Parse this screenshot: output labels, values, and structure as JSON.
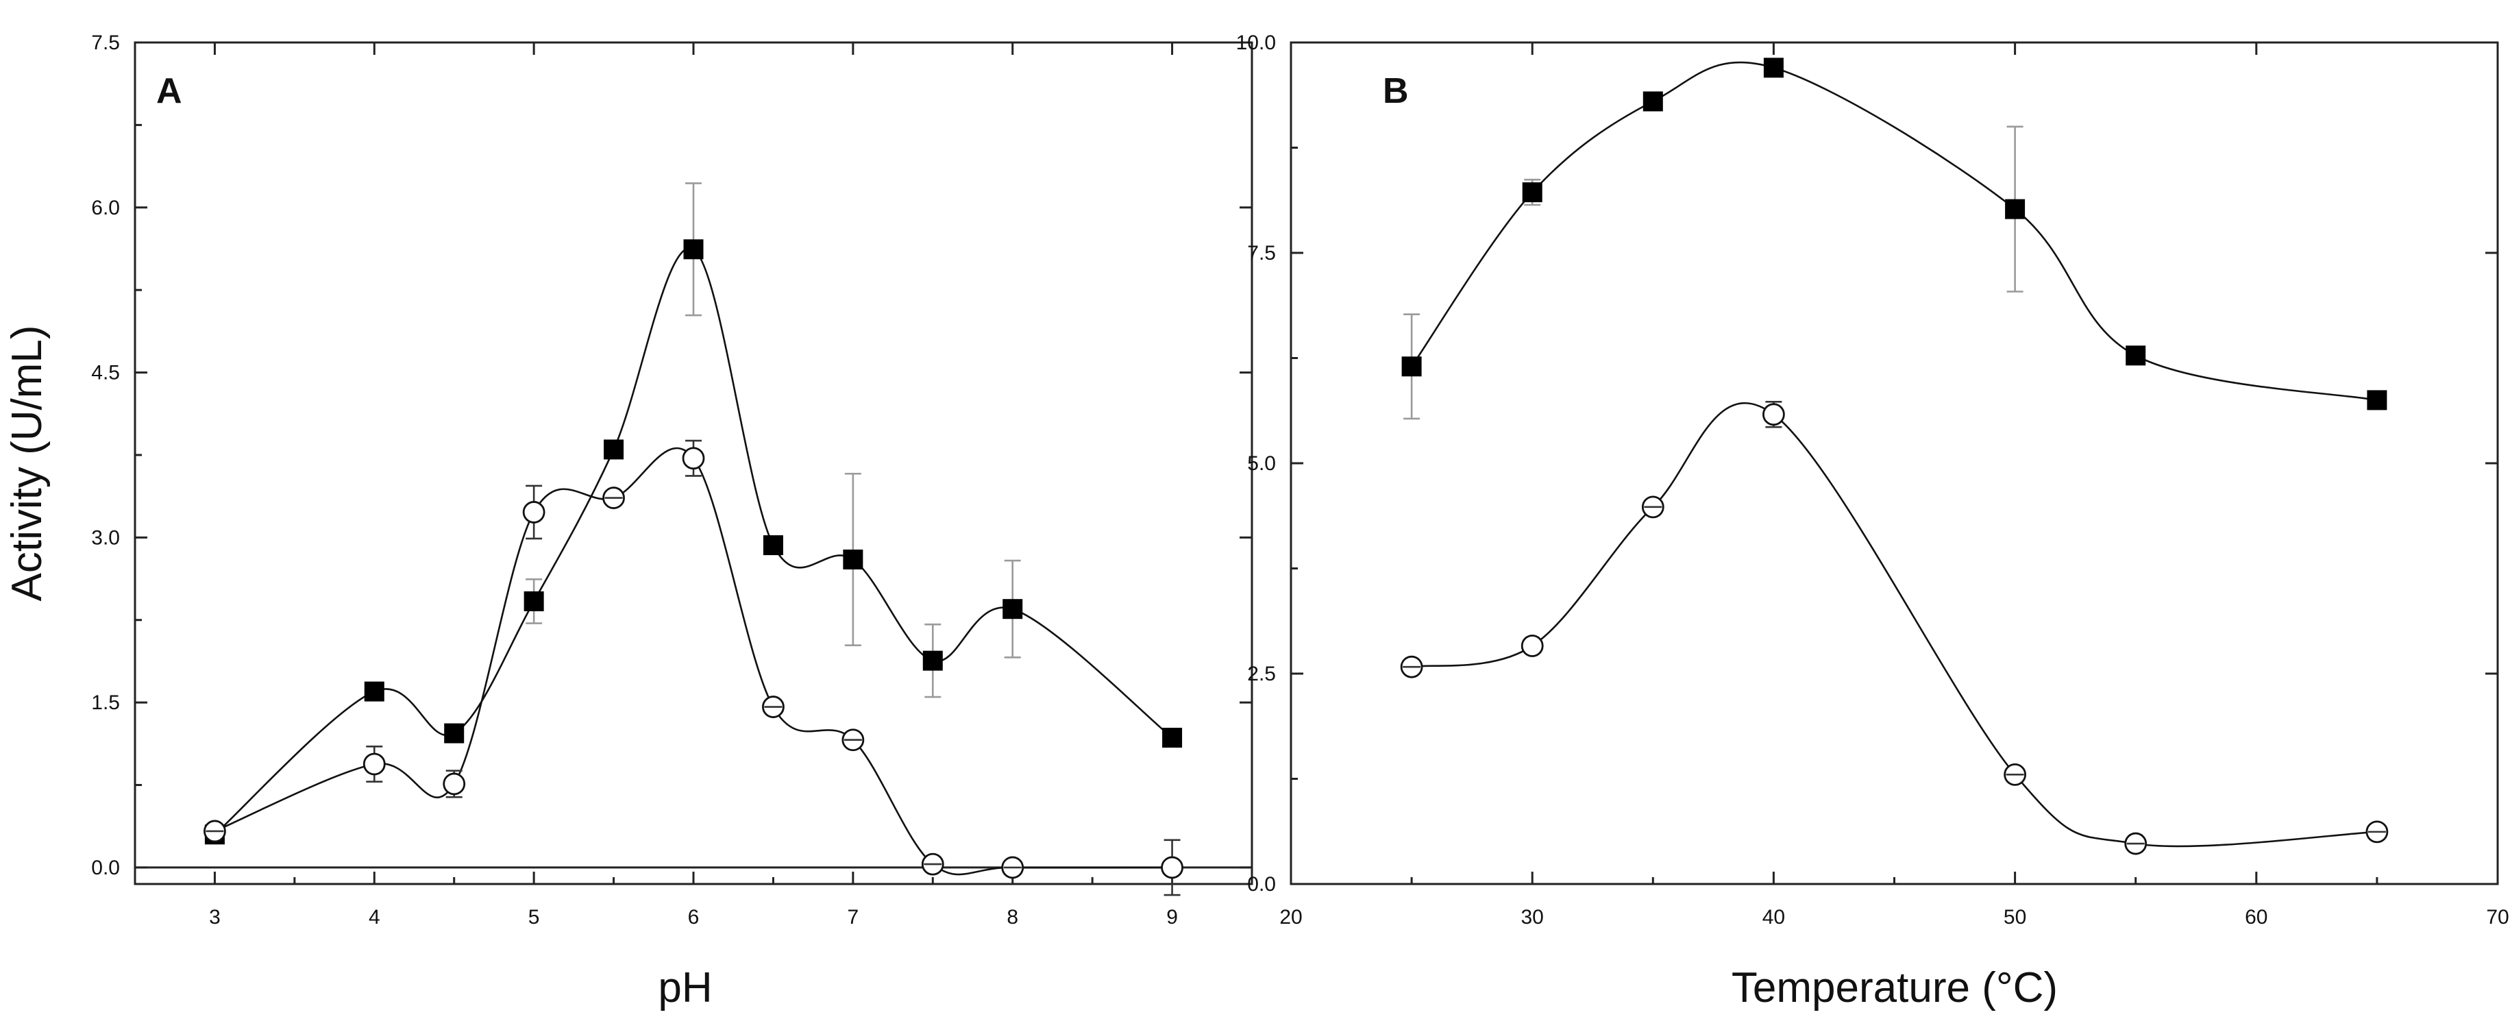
{
  "chart_data": [
    {
      "type": "line",
      "panel": "A",
      "xlabel": "pH",
      "ylabel": "Activity (U/mL)",
      "xlim": [
        2.5,
        9.5
      ],
      "ylim": [
        -0.15,
        7.5
      ],
      "xticks": [
        3,
        4,
        5,
        6,
        7,
        8,
        9
      ],
      "yticks": [
        0.0,
        1.5,
        3.0,
        4.5,
        6.0,
        7.5
      ],
      "xtick_labels": [
        "3",
        "4",
        "5",
        "6",
        "7",
        "8",
        "9"
      ],
      "ytick_labels": [
        "0.0",
        "1.5",
        "3.0",
        "4.5",
        "6.0",
        "7.5"
      ],
      "series": [
        {
          "name": "filled squares",
          "marker": "square-filled",
          "x": [
            3,
            4,
            4.5,
            5,
            5.5,
            6,
            6.5,
            7,
            7.5,
            8,
            9
          ],
          "values": [
            0.3,
            1.6,
            1.22,
            2.42,
            3.8,
            5.62,
            2.93,
            2.8,
            1.88,
            2.35,
            1.18
          ],
          "errors": [
            0.03,
            0.06,
            0.05,
            0.2,
            0.07,
            0.6,
            0.06,
            0.78,
            0.33,
            0.44,
            0.04
          ]
        },
        {
          "name": "open circles",
          "marker": "circle-open",
          "x": [
            3,
            4,
            4.5,
            5,
            5.5,
            6,
            6.5,
            7,
            7.5,
            8,
            9
          ],
          "values": [
            0.33,
            0.94,
            0.76,
            3.23,
            3.36,
            3.72,
            1.46,
            1.16,
            0.03,
            0.0,
            0.0
          ],
          "errors": [
            0.03,
            0.16,
            0.12,
            0.24,
            0.05,
            0.16,
            0.05,
            0.05,
            0.05,
            0.05,
            0.25
          ]
        }
      ]
    },
    {
      "type": "line",
      "panel": "B",
      "xlabel": "Temperature (°C)",
      "ylabel": "",
      "xlim": [
        20,
        70
      ],
      "ylim": [
        0,
        10
      ],
      "xticks": [
        20,
        30,
        40,
        50,
        60,
        70
      ],
      "yticks": [
        0.0,
        2.5,
        5.0,
        7.5,
        10.0
      ],
      "xtick_labels": [
        "20",
        "30",
        "40",
        "50",
        "60",
        "70"
      ],
      "ytick_labels": [
        "0.0",
        "2.5",
        "5.0",
        "7.5",
        "10.0"
      ],
      "series": [
        {
          "name": "filled squares",
          "marker": "square-filled",
          "x": [
            25,
            30,
            35,
            40,
            50,
            55,
            65
          ],
          "values": [
            6.15,
            8.22,
            9.3,
            9.7,
            8.02,
            6.28,
            5.75
          ],
          "errors": [
            0.62,
            0.15,
            0.05,
            0.08,
            0.98,
            0.05,
            0.05
          ]
        },
        {
          "name": "open circles",
          "marker": "circle-open",
          "x": [
            25,
            30,
            35,
            40,
            50,
            55,
            65
          ],
          "values": [
            2.58,
            2.83,
            4.48,
            5.58,
            1.3,
            0.48,
            0.62
          ],
          "errors": [
            0.05,
            0.08,
            0.05,
            0.15,
            0.05,
            0.05,
            0.05
          ]
        }
      ]
    }
  ]
}
